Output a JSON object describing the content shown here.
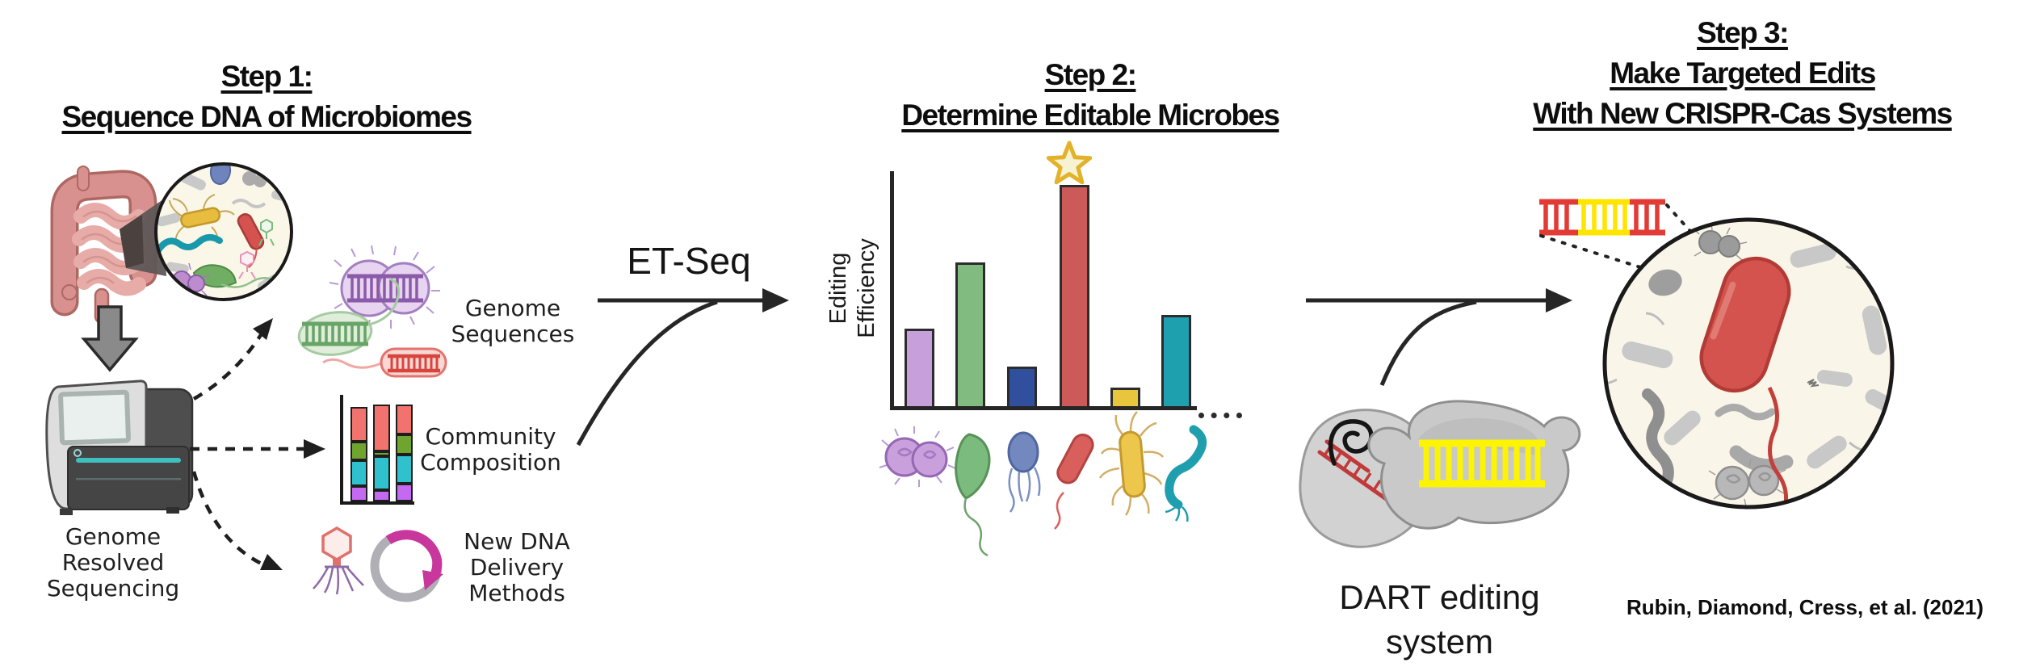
{
  "figure": {
    "steps": [
      {
        "title_lines": [
          "Step 1:",
          "Sequence DNA of Microbiomes"
        ]
      },
      {
        "title_lines": [
          "Step 2:",
          "Determine Editable Microbes"
        ]
      },
      {
        "title_lines": [
          "Step 3:",
          "Make Targeted Edits",
          "With New CRISPR-Cas Systems"
        ]
      }
    ],
    "citation": "Rubin, Diamond, Cress, et al. (2021)"
  },
  "step1": {
    "sequencer_label_lines": [
      "Genome",
      "Resolved",
      "Sequencing"
    ],
    "outputs": [
      {
        "name": "genome-sequences",
        "label_lines": [
          "Genome",
          "Sequences"
        ]
      },
      {
        "name": "community-composition",
        "label_lines": [
          "Community",
          "Composition"
        ]
      },
      {
        "name": "new-dna-delivery-methods",
        "label_lines": [
          "New DNA",
          "Delivery",
          "Methods"
        ]
      }
    ]
  },
  "arrows": {
    "et_seq_label": "ET-Seq"
  },
  "step3": {
    "dart_label_lines": [
      "DART editing",
      "system"
    ]
  },
  "chart_data": [
    {
      "type": "bar",
      "title": "",
      "ylabel": "Editing Efficiency",
      "ylabel_lines": [
        "Editing",
        "Efficiency"
      ],
      "xlabel": "",
      "categories": [
        "purple diplococcus",
        "green vibrio",
        "blue flagellated coccus",
        "red bacillus",
        "yellow peritrichous rod",
        "teal spirillum"
      ],
      "values": [
        33,
        61,
        17,
        94,
        8,
        39
      ],
      "units": "percent of axis height (no numeric ticks shown)",
      "colors": [
        "#C79FDB",
        "#82BB80",
        "#30509E",
        "#CB5A58",
        "#E9C53D",
        "#1FA0AF"
      ],
      "star_on_category_index": 3,
      "x_axis_extension": "dotted",
      "grid": false,
      "legend": false
    },
    {
      "type": "stacked-bar",
      "title": "Community Composition",
      "categories": [
        "sample 1",
        "sample 2",
        "sample 3"
      ],
      "series": [
        {
          "name": "purple taxon",
          "color": "#C469F2",
          "values": [
            16,
            12,
            18
          ]
        },
        {
          "name": "teal taxon",
          "color": "#2FC2CE",
          "values": [
            27,
            35,
            30
          ]
        },
        {
          "name": "green taxon",
          "color": "#6FA42F",
          "values": [
            19,
            5,
            21
          ]
        },
        {
          "name": "red taxon",
          "color": "#F2736D",
          "values": [
            36,
            48,
            31
          ]
        }
      ],
      "units": "relative abundance (no numeric ticks shown)",
      "grid": false,
      "legend": false
    }
  ],
  "palette": {
    "star_fill": "#F7F2D2",
    "star_stroke": "#E2B32A",
    "highlight_red": "#D4534E",
    "dna_yellow": "#FFE500",
    "dna_red": "#E23B35",
    "plasmid_magenta": "#C8379B",
    "arrow_black": "#262626"
  }
}
